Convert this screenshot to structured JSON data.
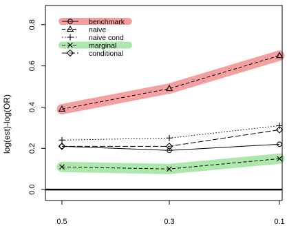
{
  "chart_data": {
    "type": "line",
    "title": "",
    "xlabel": "",
    "ylabel": "log(est)-log(OR)",
    "x": [
      0.5,
      0.3,
      0.1
    ],
    "x_tick_labels": [
      "0.5",
      "0.3",
      "0.1"
    ],
    "ylim": [
      -0.05,
      0.9
    ],
    "y_ticks": [
      0.0,
      0.2,
      0.4,
      0.6,
      0.8
    ],
    "y_tick_labels": [
      "0.0",
      "0.2",
      "0.4",
      "0.6",
      "0.8"
    ],
    "reference_line": 0.0,
    "legend_position": "top-left",
    "series": [
      {
        "name": "benchmark",
        "values": [
          0.21,
          0.19,
          0.22
        ],
        "marker": "circle",
        "dash": "solid",
        "highlight_values": [
          0.39,
          0.49,
          0.65
        ],
        "highlight_color": "#f08080"
      },
      {
        "name": "naive",
        "values": [
          0.39,
          0.49,
          0.65
        ],
        "marker": "triangle",
        "dash": "dashed"
      },
      {
        "name": "naive cond",
        "values": [
          0.24,
          0.25,
          0.31
        ],
        "marker": "plus",
        "dash": "dotted"
      },
      {
        "name": "marginal",
        "values": [
          0.11,
          0.1,
          0.15
        ],
        "marker": "x",
        "dash": "dashed",
        "highlight_values": [
          0.11,
          0.1,
          0.15
        ],
        "highlight_color": "#90e090"
      },
      {
        "name": "conditional",
        "values": [
          0.21,
          0.21,
          0.29
        ],
        "marker": "diamond",
        "dash": "longdash"
      }
    ]
  }
}
